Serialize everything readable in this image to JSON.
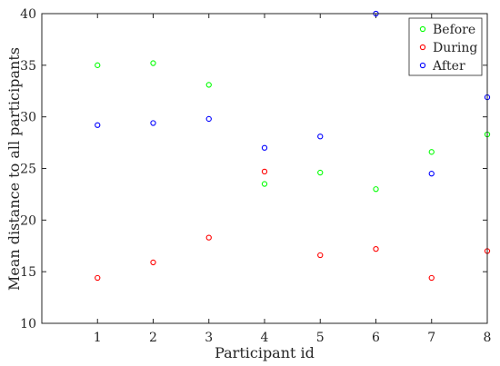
{
  "chart_data": {
    "type": "scatter",
    "xlabel": "Participant id",
    "ylabel": "Mean distance to all participants",
    "xlim": [
      0,
      8
    ],
    "ylim": [
      10,
      40
    ],
    "xticks": [
      1,
      2,
      3,
      4,
      5,
      6,
      7,
      8
    ],
    "yticks": [
      10,
      15,
      20,
      25,
      30,
      35,
      40
    ],
    "grid": false,
    "legend_position": "top-right",
    "x": [
      1,
      2,
      3,
      4,
      5,
      6,
      7,
      8
    ],
    "series": [
      {
        "name": "Before",
        "color": "#00ff00",
        "values": [
          35.0,
          35.2,
          33.1,
          23.5,
          24.6,
          23.0,
          26.6,
          28.3
        ]
      },
      {
        "name": "During",
        "color": "#ff0000",
        "values": [
          14.4,
          15.9,
          18.3,
          24.7,
          16.6,
          17.2,
          14.4,
          17.0
        ]
      },
      {
        "name": "After",
        "color": "#0000ff",
        "values": [
          29.2,
          29.4,
          29.8,
          27.0,
          28.1,
          40.0,
          24.5,
          31.9
        ]
      }
    ]
  }
}
